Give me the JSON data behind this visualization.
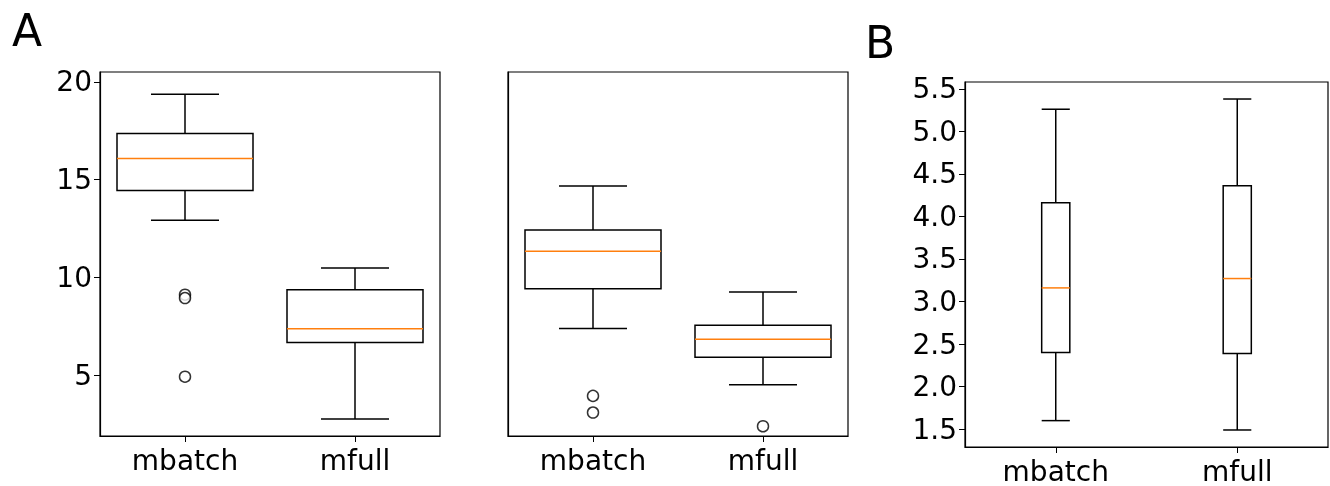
{
  "chart_data": [
    {
      "type": "box",
      "categories": [
        "mbatch",
        "mfull"
      ],
      "color": "#000000",
      "annotations": [
        "A"
      ],
      "boxes": [
        {
          "low": 12.93,
          "q1": 14.45,
          "median": 16.08,
          "q3": 17.36,
          "high": 19.36,
          "outliers": [
            9.12,
            8.95,
            4.93
          ]
        },
        {
          "low": 2.77,
          "q1": 6.68,
          "median": 7.38,
          "q3": 9.37,
          "high": 10.48
        }
      ],
      "ylim": [
        1.9,
        20.5
      ],
      "yticks": [
        5,
        10,
        15,
        20
      ]
    },
    {
      "type": "box",
      "categories": [
        "mbatch",
        "mfull"
      ],
      "color": "#000000",
      "tick_labels": "x",
      "boxes": [
        {
          "low": 7.39,
          "q1": 9.42,
          "median": 11.34,
          "q3": 12.42,
          "high": 14.67,
          "outliers": [
            3.95,
            3.1
          ]
        },
        {
          "low": 4.52,
          "q1": 5.93,
          "median": 6.85,
          "q3": 7.56,
          "high": 9.26,
          "outliers": [
            2.4
          ]
        }
      ],
      "ylim": [
        1.9,
        20.5
      ],
      "yticks": [
        5,
        10,
        15,
        20
      ]
    },
    {
      "type": "box",
      "categories": [
        "mbatch",
        "mfull"
      ],
      "color": "#000000",
      "annotations": [
        "B"
      ],
      "boxes": [
        {
          "low": 1.6,
          "q1": 2.4,
          "median": 3.16,
          "q3": 4.16,
          "high": 5.26
        },
        {
          "low": 1.49,
          "q1": 2.39,
          "median": 3.27,
          "q3": 4.36,
          "high": 5.38
        }
      ],
      "ylim": [
        1.29,
        5.58
      ],
      "yticks": [
        {
          "value": 1.5,
          "label": "1.5"
        },
        {
          "value": 2,
          "label": "2.0"
        },
        {
          "value": 2.5,
          "label": "2.5"
        },
        {
          "value": 3,
          "label": "3.0"
        },
        {
          "value": 3.5,
          "label": "3.5"
        },
        {
          "value": 4,
          "label": "4.0"
        },
        {
          "value": 4.5,
          "label": "4.5"
        },
        {
          "value": 5,
          "label": "5.0"
        },
        {
          "value": 5.5,
          "label": "5.5"
        }
      ]
    }
  ]
}
